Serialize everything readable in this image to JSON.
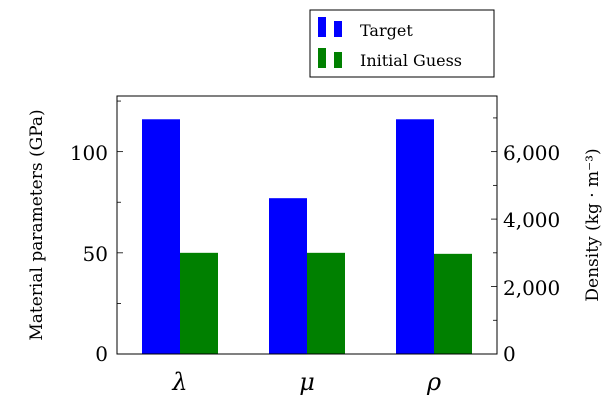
{
  "chart_data": {
    "type": "bar",
    "categories": [
      "λ",
      "μ",
      "ρ"
    ],
    "series": [
      {
        "name": "Target",
        "values": [
          116,
          77,
          116
        ],
        "color": "#0000ff"
      },
      {
        "name": "Initial Guess",
        "values": [
          50,
          50,
          49.5
        ],
        "color": "#008000"
      }
    ],
    "xlabel": "",
    "ylabel": "Material parameters (GPa)",
    "y2label": "Density (kg · m⁻³)",
    "ylim": [
      0,
      127.5
    ],
    "y2lim": [
      0,
      7650
    ],
    "yticks": [
      "0",
      "50",
      "100"
    ],
    "y2ticks": [
      "0",
      "2,000",
      "4,000",
      "6,000"
    ],
    "legend_placement": "above-right",
    "grid": false
  }
}
